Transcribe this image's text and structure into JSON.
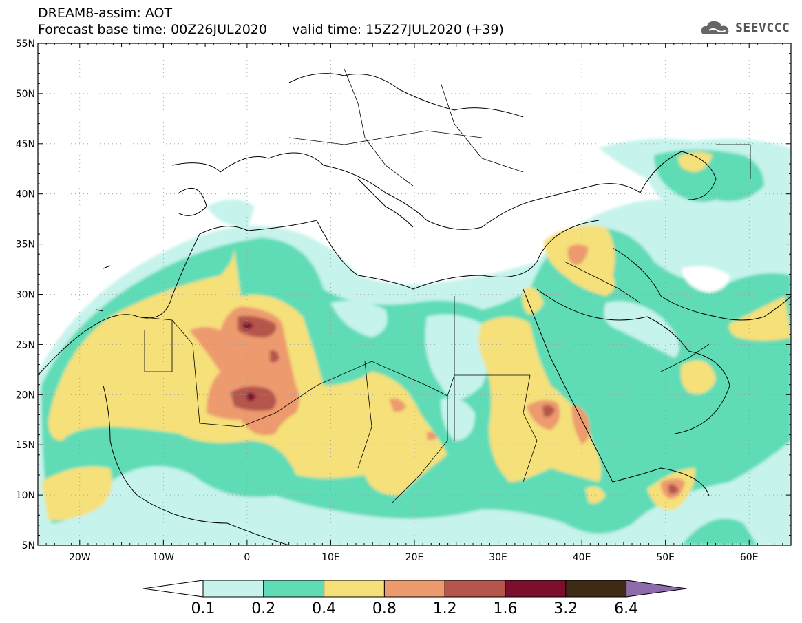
{
  "header": {
    "model_title": "DREAM8-assim: AOT",
    "base_time_label": "Forecast base time: 00Z26JUL2020",
    "valid_time_label": "valid time: 15Z27JUL2020 (+39)"
  },
  "brand": {
    "name": "SEEVCCC",
    "icon": "cloud-logo-icon"
  },
  "map": {
    "lon_range": [
      -25,
      65
    ],
    "lat_range": [
      5,
      55
    ],
    "lon_ticks": [
      "20W",
      "10W",
      "0",
      "10E",
      "20E",
      "30E",
      "40E",
      "50E",
      "60E"
    ],
    "lat_ticks": [
      "55N",
      "50N",
      "45N",
      "40N",
      "35N",
      "30N",
      "25N",
      "20N",
      "15N",
      "10N",
      "5N"
    ],
    "grid": "dotted"
  },
  "legend": {
    "labels": [
      "0.1",
      "0.2",
      "0.4",
      "0.8",
      "1.2",
      "1.6",
      "3.2",
      "6.4"
    ],
    "colors": [
      "#c6f3ec",
      "#5fdcb6",
      "#f5e07a",
      "#ec9a6e",
      "#b5554c",
      "#7d0f2e",
      "#3f2a14",
      "#8e6bab"
    ]
  }
}
